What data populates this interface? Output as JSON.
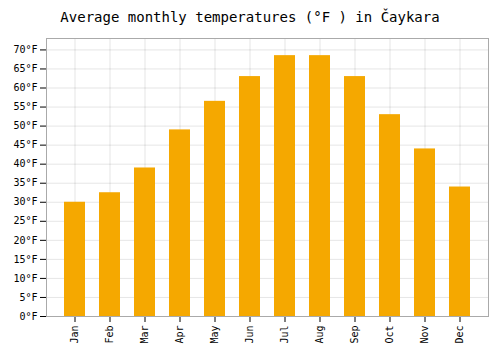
{
  "chart_data": {
    "type": "bar",
    "title": "Average monthly temperatures (°F ) in Čaykara",
    "categories": [
      "Jan",
      "Feb",
      "Mar",
      "Apr",
      "May",
      "Jun",
      "Jul",
      "Aug",
      "Sep",
      "Oct",
      "Nov",
      "Dec"
    ],
    "values": [
      30,
      32.5,
      39,
      49,
      56.5,
      63,
      68.5,
      68.5,
      63,
      53,
      44,
      34
    ],
    "color": "#F5A800",
    "ylim": [
      0,
      73
    ],
    "yticks": [
      {
        "value": 0,
        "label": "0°F"
      },
      {
        "value": 5,
        "label": "5°F"
      },
      {
        "value": 10,
        "label": "10°F"
      },
      {
        "value": 15,
        "label": "15°F"
      },
      {
        "value": 20,
        "label": "20°F"
      },
      {
        "value": 25,
        "label": "25°F"
      },
      {
        "value": 30,
        "label": "30°F"
      },
      {
        "value": 35,
        "label": "35°F"
      },
      {
        "value": 40,
        "label": "40°F"
      },
      {
        "value": 45,
        "label": "45°F"
      },
      {
        "value": 50,
        "label": "50°F"
      },
      {
        "value": 55,
        "label": "55°F"
      },
      {
        "value": 60,
        "label": "60°F"
      },
      {
        "value": 65,
        "label": "65°F"
      },
      {
        "value": 70,
        "label": "70°F"
      }
    ],
    "grid": true
  }
}
